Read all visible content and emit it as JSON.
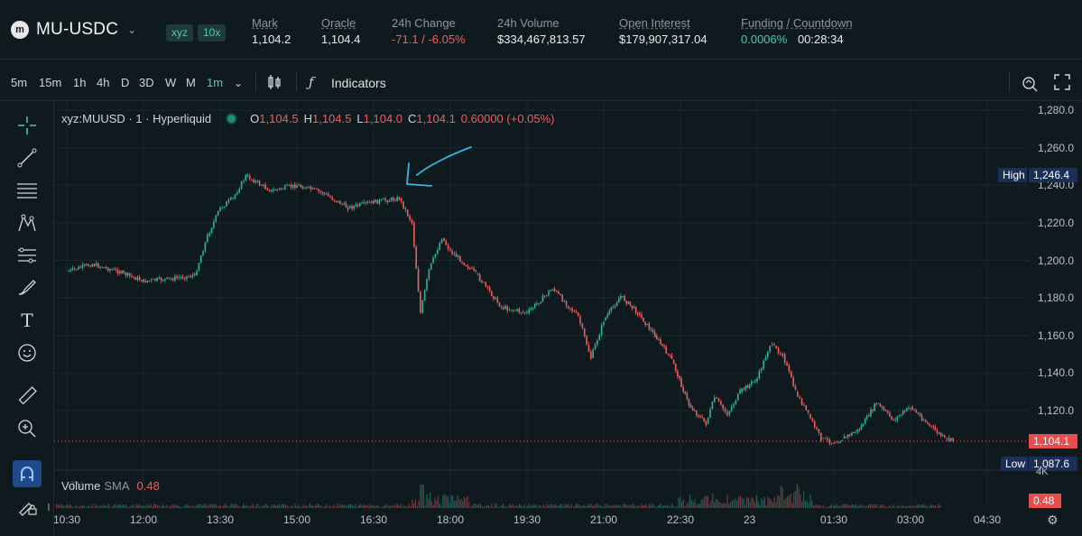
{
  "header": {
    "pair": "MU-USDC",
    "tag_dex": "xyz",
    "tag_leverage": "10x",
    "stats": [
      {
        "label": "Mark",
        "value": "1,104.2"
      },
      {
        "label": "Oracle",
        "value": "1,104.4"
      },
      {
        "label": "24h Change",
        "value": "-71.1 / -6.05%"
      },
      {
        "label": "24h Volume",
        "value": "$334,467,813.57"
      },
      {
        "label": "Open Interest",
        "value": "$179,907,317.04"
      },
      {
        "label": "Funding / Countdown",
        "value_funding": "0.0006%",
        "value_countdown": "00:28:34"
      }
    ]
  },
  "toolbar": {
    "timeframes": [
      "5m",
      "15m",
      "1h",
      "4h",
      "D",
      "3D",
      "W",
      "M",
      "1m"
    ],
    "active_timeframe": "1m",
    "indicators_label": "Indicators"
  },
  "legend": {
    "symbol": "xyz:MUUSD · 1 · Hyperliquid",
    "o_label": "O",
    "o": "1,104.5",
    "h_label": "H",
    "h": "1,104.5",
    "l_label": "L",
    "l": "1,104.0",
    "c_label": "C",
    "c": "1,104.1",
    "change": "0.60000 (+0.05%)"
  },
  "volume_legend": {
    "label": "Volume",
    "sma": "SMA",
    "value": "0.48"
  },
  "badges": {
    "high_label": "High",
    "high_value": "1,246.4",
    "price_value": "1,104.1",
    "low_label": "Low",
    "low_value": "1,087.6",
    "volume_value": "0.48",
    "vol_axis": "4K"
  },
  "colors": {
    "up": "#2bb59a",
    "down": "#ee5f5f",
    "accent": "#4fc9b5",
    "annotation": "#35b6e6"
  },
  "chart_data": {
    "type": "line",
    "y_ticks": [
      "1,280.0",
      "1,260.0",
      "1,240.0",
      "1,220.0",
      "1,200.0",
      "1,180.0",
      "1,160.0",
      "1,140.0",
      "1,120.0"
    ],
    "x_ticks": [
      "10:30",
      "12:00",
      "13:30",
      "15:00",
      "16:30",
      "18:00",
      "19:30",
      "21:00",
      "22:30",
      "23",
      "01:30",
      "03:00",
      "04:30"
    ],
    "ylim": [
      1085,
      1285
    ],
    "series": [
      {
        "x": [
          "10:30",
          "11:00",
          "11:30",
          "12:00",
          "12:30",
          "13:00",
          "13:15",
          "13:30",
          "13:45",
          "14:00",
          "14:30",
          "15:00",
          "15:30",
          "16:00",
          "16:30",
          "17:00",
          "17:15",
          "17:25",
          "17:35",
          "17:50",
          "18:00",
          "18:30",
          "19:00",
          "19:30",
          "20:00",
          "20:30",
          "20:45",
          "21:00",
          "21:20",
          "21:40",
          "22:00",
          "22:20",
          "22:40",
          "23:00",
          "23:10",
          "23:25",
          "23:40",
          "24:00",
          "00:15",
          "00:30",
          "00:45",
          "01:00",
          "01:15",
          "01:30",
          "01:40",
          "02:00",
          "02:20",
          "02:40",
          "03:00",
          "03:20",
          "03:40",
          "03:50"
        ],
        "y": [
          1194,
          1198,
          1194,
          1189,
          1190,
          1192,
          1213,
          1228,
          1233,
          1245,
          1237,
          1240,
          1236,
          1228,
          1231,
          1233,
          1220,
          1172,
          1195,
          1212,
          1205,
          1193,
          1175,
          1172,
          1185,
          1170,
          1148,
          1168,
          1181,
          1172,
          1160,
          1147,
          1123,
          1113,
          1127,
          1118,
          1130,
          1137,
          1155,
          1150,
          1130,
          1118,
          1105,
          1103,
          1105,
          1110,
          1124,
          1115,
          1122,
          1113,
          1105,
          1104
        ]
      }
    ]
  }
}
